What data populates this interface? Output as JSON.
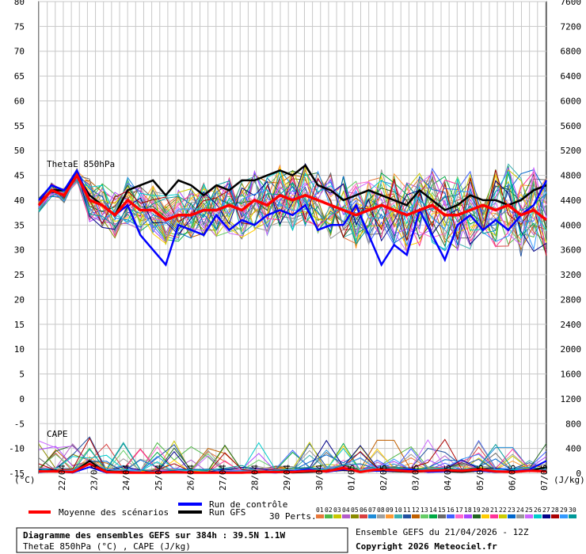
{
  "footer": {
    "title": "Diagramme des ensembles GEFS sur 384h : 39.5N 1.1W",
    "subtitle": "ThetaE 850hPa (°C) , CAPE (J/kg)",
    "ensemble_info": "Ensemble GEFS du 21/04/2026 - 12Z",
    "copyright": "Copyright 2026 Meteociel.fr"
  },
  "legend": {
    "mean": "Moyenne des scénarios",
    "control": "Run de contrôle",
    "gfs": "Run GFS",
    "perts": "30 Perts.",
    "mean_color": "#ff0000",
    "control_color": "#0000ff",
    "gfs_color": "#000000"
  },
  "chart_data": {
    "type": "line",
    "panels": [
      {
        "name": "ThetaE 850hPa",
        "unit": "°C",
        "axis": "left",
        "ylim": [
          -15,
          80
        ]
      },
      {
        "name": "CAPE",
        "unit": "J/kg",
        "axis": "right",
        "ylim": [
          0,
          7600
        ]
      }
    ],
    "left_unit_label": "(°C)",
    "right_unit_label": "(J/kg)",
    "left_ticks": [
      80,
      75,
      70,
      65,
      60,
      55,
      50,
      45,
      40,
      35,
      30,
      25,
      20,
      15,
      10,
      5,
      0,
      -5,
      -10,
      -15
    ],
    "right_ticks": [
      7600,
      7200,
      6800,
      6400,
      6000,
      5600,
      5200,
      4800,
      4400,
      4000,
      3600,
      3200,
      2800,
      2400,
      2000,
      1600,
      1200,
      800,
      400,
      0
    ],
    "dates": [
      "22/04",
      "23/04",
      "24/04",
      "25/04",
      "26/04",
      "27/04",
      "28/04",
      "29/04",
      "30/04",
      "01/05",
      "02/05",
      "03/05",
      "04/05",
      "05/05",
      "06/05",
      "07/05"
    ],
    "pert_labels": [
      "01",
      "02",
      "03",
      "04",
      "05",
      "06",
      "07",
      "08",
      "09",
      "10",
      "11",
      "12",
      "13",
      "14",
      "15",
      "16",
      "17",
      "18",
      "19",
      "20",
      "21",
      "22",
      "23",
      "24",
      "25",
      "26",
      "27",
      "28",
      "29",
      "30"
    ],
    "pert_colors": [
      "#e8773a",
      "#50b848",
      "#c8c800",
      "#b35cc8",
      "#8b8b00",
      "#d84040",
      "#1e8cd8",
      "#a0a0a0",
      "#ff9933",
      "#3cb0b0",
      "#2050a0",
      "#c06000",
      "#66cc66",
      "#00aa44",
      "#6a6a6a",
      "#4060ff",
      "#ff66cc",
      "#aa44ff",
      "#226622",
      "#ffcc00",
      "#ff3399",
      "#cccc00",
      "#0066cc",
      "#999999",
      "#cc66ff",
      "#00cccc",
      "#000088",
      "#aa0000",
      "#3399ff",
      "#009999"
    ],
    "thetae_mean": [
      39,
      42,
      41,
      45,
      40,
      39,
      37,
      40,
      38,
      38,
      36,
      37,
      37,
      38,
      38,
      39,
      38,
      40,
      39,
      41,
      40,
      41,
      40,
      39,
      38,
      37,
      38,
      39,
      38,
      37,
      38,
      39,
      37,
      37,
      38,
      39,
      38,
      39,
      37,
      38,
      36
    ],
    "thetae_control": [
      40,
      43,
      42,
      46,
      40,
      39,
      37,
      39,
      33,
      30,
      27,
      35,
      34,
      33,
      37,
      34,
      36,
      35,
      37,
      38,
      37,
      39,
      34,
      35,
      35,
      39,
      33,
      27,
      31,
      29,
      38,
      33,
      28,
      35,
      37,
      34,
      36,
      34,
      37,
      39,
      44
    ],
    "thetae_gfs": [
      39,
      42,
      42,
      45,
      41,
      39,
      37,
      42,
      43,
      44,
      41,
      44,
      43,
      41,
      43,
      42,
      44,
      44,
      45,
      46,
      45,
      47,
      43,
      42,
      40,
      41,
      42,
      41,
      40,
      39,
      42,
      40,
      38,
      39,
      41,
      40,
      40,
      39,
      40,
      42,
      43
    ],
    "cape_mean": [
      30,
      30,
      20,
      150,
      20,
      10,
      10,
      10,
      20,
      10,
      10,
      10,
      10,
      20,
      20,
      20,
      40,
      30,
      80,
      20,
      60,
      50,
      30,
      40,
      50,
      40,
      60,
      30,
      20,
      40,
      30
    ],
    "cape_control": [
      20,
      30,
      10,
      100,
      10,
      10,
      10,
      20,
      30,
      10,
      10,
      20,
      10,
      20,
      10,
      30,
      60,
      20,
      60,
      30,
      40,
      40,
      60,
      20,
      30,
      50,
      40,
      20,
      30,
      60,
      200
    ],
    "cape_gfs": [
      20,
      40,
      10,
      200,
      10,
      20,
      10,
      10,
      10,
      10,
      10,
      10,
      10,
      10,
      30,
      10,
      20,
      30,
      50,
      30,
      40,
      30,
      20,
      30,
      30,
      20,
      40,
      20,
      30,
      40,
      100
    ]
  }
}
